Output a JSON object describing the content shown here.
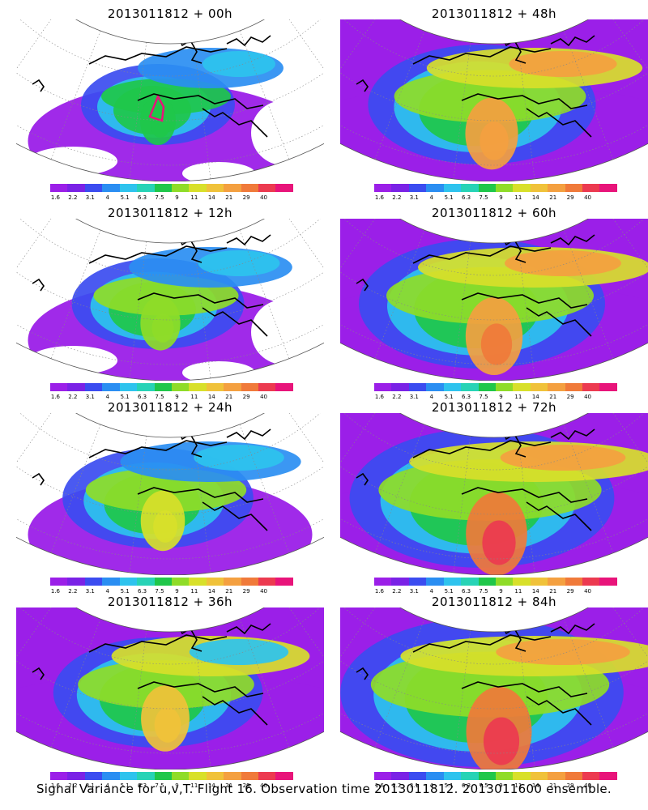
{
  "panels": [
    {
      "title": "2013011812 + 00h",
      "level": 0
    },
    {
      "title": "2013011812 + 48h",
      "level": 4
    },
    {
      "title": "2013011812 + 12h",
      "level": 1
    },
    {
      "title": "2013011812 + 60h",
      "level": 5
    },
    {
      "title": "2013011812 + 24h",
      "level": 2
    },
    {
      "title": "2013011812 + 72h",
      "level": 6
    },
    {
      "title": "2013011812 + 36h",
      "level": 3
    },
    {
      "title": "2013011812 + 84h",
      "level": 7
    }
  ],
  "colorbar": {
    "labels": [
      "1.6",
      "2.2",
      "3.1",
      "4",
      "5.1",
      "6.3",
      "7.5",
      "9",
      "11",
      "14",
      "21",
      "29",
      "40"
    ],
    "colors": [
      "#9b1fe8",
      "#7a22e6",
      "#3b4cf0",
      "#2a8ef2",
      "#2ec3ee",
      "#27d3b6",
      "#1fc74a",
      "#8fdc28",
      "#d8e02a",
      "#f0c23a",
      "#f4a040",
      "#f07a3a",
      "#ec3a50",
      "#e8147a"
    ]
  },
  "footer": "Signal Variance for u,v,T. Flight 16. Observation time 2013011812. 2013011600 ensemble."
}
